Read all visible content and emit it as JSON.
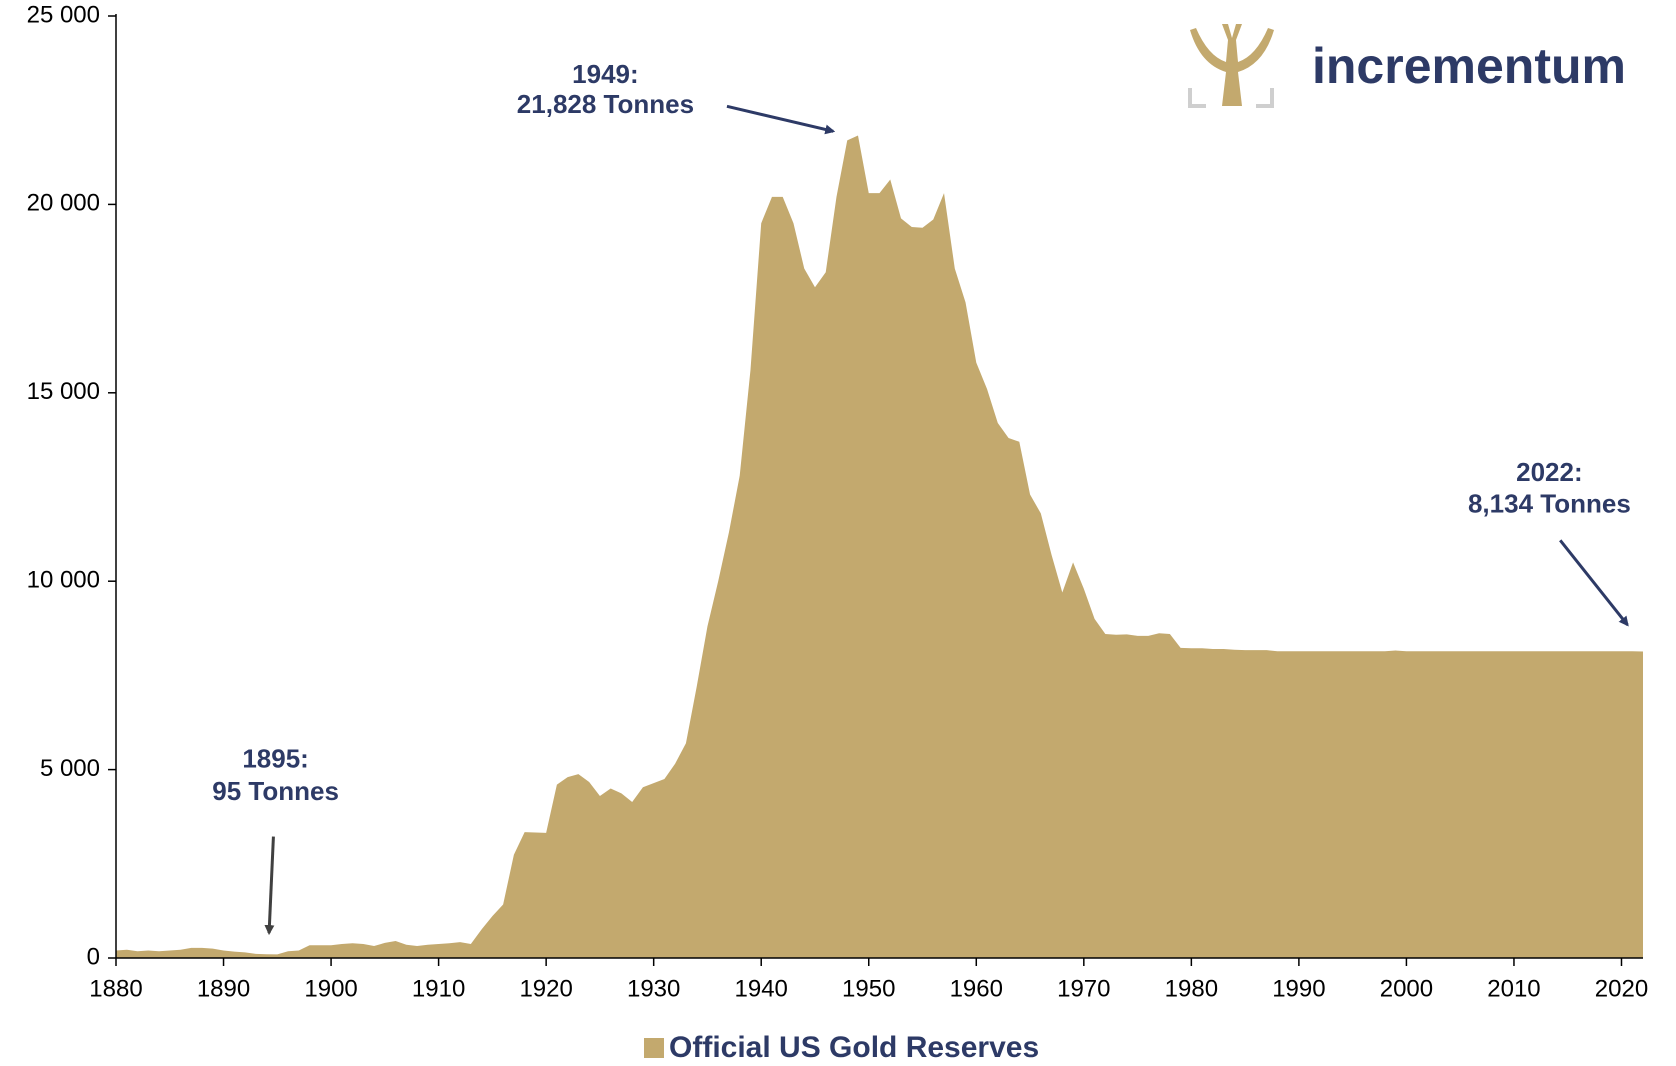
{
  "chart_data": {
    "type": "area",
    "logo_text": "incrementum",
    "x": [
      1880,
      1881,
      1882,
      1883,
      1884,
      1885,
      1886,
      1887,
      1888,
      1889,
      1890,
      1891,
      1892,
      1893,
      1894,
      1895,
      1896,
      1897,
      1898,
      1899,
      1900,
      1901,
      1902,
      1903,
      1904,
      1905,
      1906,
      1907,
      1908,
      1909,
      1910,
      1911,
      1912,
      1913,
      1914,
      1915,
      1916,
      1917,
      1918,
      1919,
      1920,
      1921,
      1922,
      1923,
      1924,
      1925,
      1926,
      1927,
      1928,
      1929,
      1930,
      1931,
      1932,
      1933,
      1934,
      1935,
      1936,
      1937,
      1938,
      1939,
      1940,
      1941,
      1942,
      1943,
      1944,
      1945,
      1946,
      1947,
      1948,
      1949,
      1950,
      1951,
      1952,
      1953,
      1954,
      1955,
      1956,
      1957,
      1958,
      1959,
      1960,
      1961,
      1962,
      1963,
      1964,
      1965,
      1966,
      1967,
      1968,
      1969,
      1970,
      1971,
      1972,
      1973,
      1974,
      1975,
      1976,
      1977,
      1978,
      1979,
      1980,
      1981,
      1982,
      1983,
      1984,
      1985,
      1986,
      1987,
      1988,
      1989,
      1990,
      1991,
      1992,
      1993,
      1994,
      1995,
      1996,
      1997,
      1998,
      1999,
      2000,
      2001,
      2002,
      2003,
      2004,
      2005,
      2006,
      2007,
      2008,
      2009,
      2010,
      2011,
      2012,
      2013,
      2014,
      2015,
      2016,
      2017,
      2018,
      2019,
      2020,
      2021,
      2022
    ],
    "series": [
      {
        "name": "Official US Gold Reserves",
        "color": "#c3a96e",
        "values": [
          200,
          220,
          180,
          200,
          180,
          200,
          220,
          270,
          270,
          250,
          200,
          170,
          150,
          110,
          100,
          95,
          180,
          200,
          340,
          340,
          340,
          370,
          390,
          370,
          320,
          400,
          450,
          350,
          320,
          350,
          370,
          390,
          420,
          370,
          760,
          1110,
          1420,
          2740,
          3340,
          3330,
          3320,
          4600,
          4800,
          4880,
          4670,
          4300,
          4500,
          4370,
          4140,
          4530,
          4640,
          4750,
          5160,
          5700,
          7200,
          8800,
          10000,
          11300,
          12800,
          15600,
          19500,
          20200,
          20200,
          19500,
          18300,
          17800,
          18200,
          20200,
          21700,
          21828,
          20300,
          20300,
          20660,
          19630,
          19400,
          19380,
          19600,
          20300,
          18300,
          17400,
          15800,
          15100,
          14200,
          13800,
          13700,
          12300,
          11800,
          10700,
          9700,
          10500,
          9800,
          9000,
          8600,
          8580,
          8590,
          8550,
          8550,
          8620,
          8600,
          8230,
          8220,
          8220,
          8200,
          8200,
          8180,
          8170,
          8170,
          8170,
          8140,
          8140,
          8140,
          8140,
          8140,
          8140,
          8140,
          8140,
          8140,
          8140,
          8140,
          8160,
          8140,
          8140,
          8140,
          8140,
          8140,
          8140,
          8140,
          8140,
          8140,
          8140,
          8140,
          8140,
          8140,
          8140,
          8140,
          8140,
          8140,
          8140,
          8140,
          8140,
          8140,
          8140,
          8134
        ]
      }
    ],
    "xlim": [
      1880,
      2022
    ],
    "ylim": [
      0,
      25000
    ],
    "xticks": [
      1880,
      1890,
      1900,
      1910,
      1920,
      1930,
      1940,
      1950,
      1960,
      1970,
      1980,
      1990,
      2000,
      2010,
      2020
    ],
    "yticks": [
      0,
      {
        "value": 5000,
        "label": "5 000"
      },
      {
        "value": 10000,
        "label": "10 000"
      },
      {
        "value": 15000,
        "label": "15 000"
      },
      {
        "value": 20000,
        "label": "20 000"
      },
      {
        "value": 25000,
        "label": "25 000"
      }
    ],
    "annotations": [
      {
        "lines": [
          "1949:",
          "21,828 Tonnes"
        ]
      },
      {
        "lines": [
          "1895:",
          "95 Tonnes"
        ]
      },
      {
        "lines": [
          "2022:",
          "8,134 Tonnes"
        ]
      }
    ],
    "legend": "bottom"
  }
}
